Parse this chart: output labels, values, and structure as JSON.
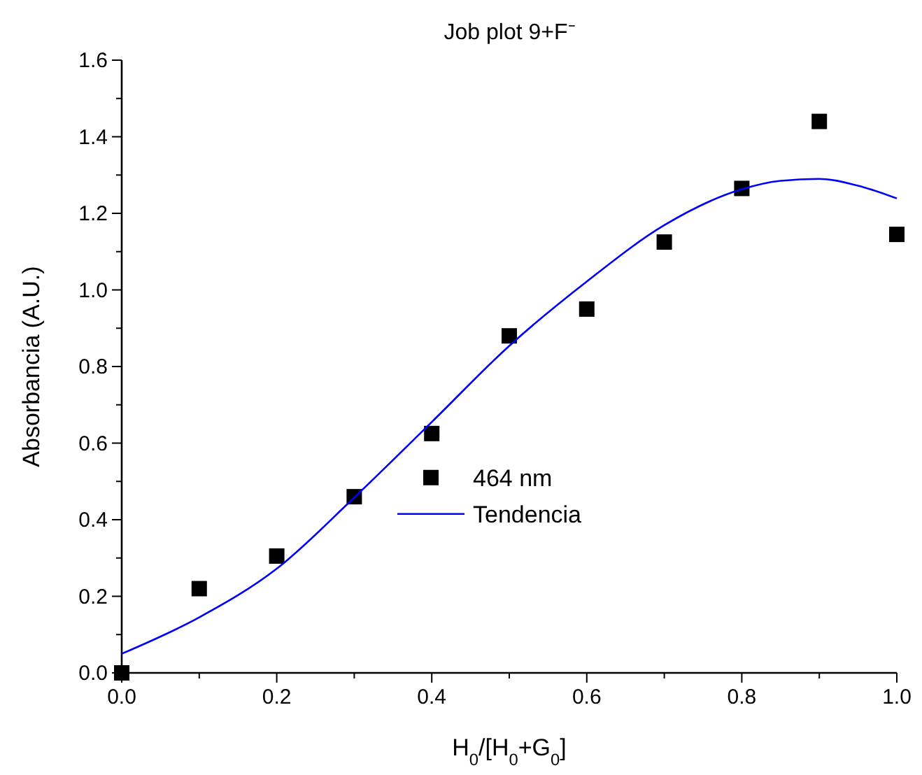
{
  "chart_data": {
    "type": "scatter",
    "title": "Job plot 9+F⁻",
    "xlabel": "H$_{0}$/[H$_{0}$+G$_{0}$]",
    "ylabel": "Absorbancia (A.U.)",
    "xlim": [
      0,
      1
    ],
    "ylim": [
      0,
      1.6
    ],
    "xticks": [
      {
        "value": 0,
        "label": "0.0"
      },
      {
        "value": 0.1,
        "label": null
      },
      0.2,
      {
        "value": 0.3,
        "label": null
      },
      0.4,
      {
        "value": 0.5,
        "label": null
      },
      0.6,
      {
        "value": 0.7,
        "label": null
      },
      0.8,
      {
        "value": 0.9,
        "label": null
      },
      {
        "value": 1,
        "label": "1.0"
      }
    ],
    "yticks": [
      {
        "value": 0,
        "label": "0.0"
      },
      {
        "value": 0.1,
        "label": null
      },
      0.2,
      {
        "value": 0.3,
        "label": null
      },
      0.4,
      {
        "value": 0.5,
        "label": null
      },
      0.6,
      {
        "value": 0.7,
        "label": null
      },
      0.8,
      {
        "value": 0.9,
        "label": null
      },
      {
        "value": 1,
        "label": "1.0"
      },
      {
        "value": 1.1,
        "label": null
      },
      1.2,
      {
        "value": 1.3,
        "label": null
      },
      1.4,
      {
        "value": 1.5,
        "label": null
      },
      1.6
    ],
    "grid": false,
    "legend": "center",
    "marker": "square",
    "series": [
      {
        "name": "464 nm",
        "color": "#000000",
        "x": [
          0,
          0.1,
          0.2,
          0.3,
          0.4,
          0.5,
          0.6,
          0.7,
          0.8,
          0.9,
          1.0
        ],
        "values": [
          0,
          0.22,
          0.305,
          0.46,
          0.625,
          0.88,
          0.95,
          1.125,
          1.265,
          1.44,
          1.145
        ]
      },
      {
        "name": "Tendencia",
        "type": "line",
        "color": "#0000ff",
        "line_style": "solid",
        "marker": "none",
        "x": [
          0,
          0.1,
          0.2,
          0.3,
          0.4,
          0.5,
          0.6,
          0.7,
          0.8,
          0.85,
          0.9,
          0.95,
          1.0
        ],
        "values": [
          0.05,
          0.145,
          0.272,
          0.458,
          0.655,
          0.854,
          1.022,
          1.169,
          1.263,
          1.285,
          1.29,
          1.272,
          1.239
        ]
      }
    ]
  }
}
